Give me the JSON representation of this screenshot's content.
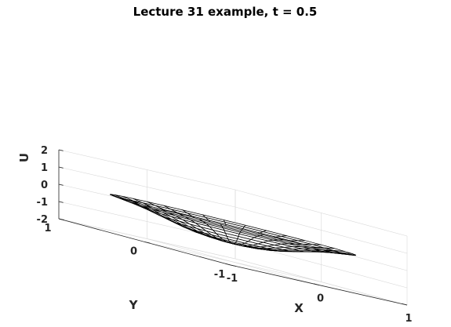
{
  "chart_data": {
    "type": "surface",
    "title": "Lecture 31 example, t = 0.5",
    "xlabel": "X",
    "ylabel": "Y",
    "zlabel": "U",
    "xlim": [
      -1,
      1
    ],
    "ylim": [
      -1,
      1
    ],
    "zlim": [
      -2,
      2
    ],
    "xticks": [
      "-1",
      "0",
      "1"
    ],
    "yticks": [
      "-1",
      "0",
      "1"
    ],
    "zticks": [
      "-2",
      "-1",
      "0",
      "1",
      "2"
    ],
    "grid": true,
    "view": "3d",
    "domain": "unit disk",
    "surface": {
      "radial_samples": [
        0,
        0.1,
        0.2,
        0.3,
        0.4,
        0.5,
        0.6,
        0.7,
        0.8,
        0.9,
        1.0
      ],
      "angular_divisions": 36,
      "profile_u": [
        -0.95,
        -0.93,
        -0.88,
        -0.8,
        -0.68,
        -0.52,
        -0.35,
        -0.18,
        -0.05,
        0.05,
        0.15
      ],
      "mesh_color": "#000000",
      "face_color": "#ffffff"
    }
  }
}
